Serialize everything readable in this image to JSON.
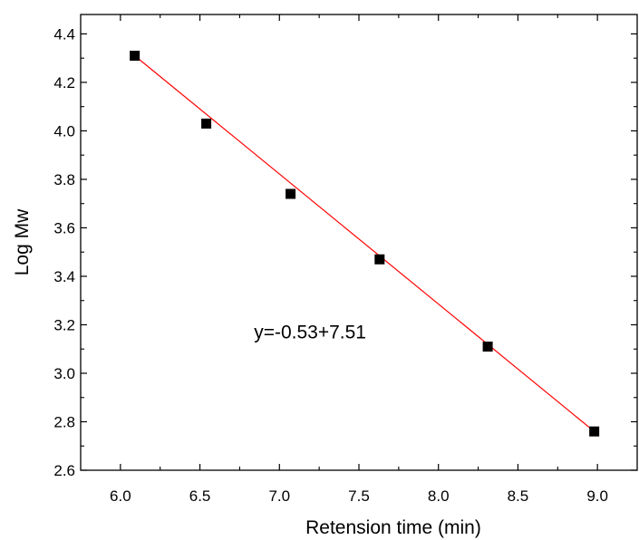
{
  "chart_data": {
    "type": "scatter",
    "title": "",
    "xlabel": "Retension time (min)",
    "ylabel": "Log Mw",
    "xlim": [
      5.75,
      9.25
    ],
    "ylim": [
      2.6,
      4.48
    ],
    "x_ticks": [
      "6.0",
      "6.5",
      "7.0",
      "7.5",
      "8.0",
      "8.5",
      "9.0"
    ],
    "y_ticks": [
      "2.6",
      "2.8",
      "3.0",
      "3.2",
      "3.4",
      "3.6",
      "3.8",
      "4.0",
      "4.2",
      "4.4"
    ],
    "grid": false,
    "legend": "none",
    "series": [
      {
        "marker": "square",
        "color": "#000000",
        "points": [
          {
            "x": 6.09,
            "y": 4.31
          },
          {
            "x": 6.54,
            "y": 4.03
          },
          {
            "x": 7.07,
            "y": 3.74
          },
          {
            "x": 7.63,
            "y": 3.47
          },
          {
            "x": 8.31,
            "y": 3.11
          },
          {
            "x": 8.98,
            "y": 2.76
          }
        ]
      }
    ],
    "fit_line": {
      "color": "#ff0000",
      "points": [
        {
          "x": 6.09,
          "y": 4.31
        },
        {
          "x": 8.98,
          "y": 2.76
        }
      ]
    },
    "annotation": {
      "text": "y=-0.53+7.51",
      "x": 6.84,
      "y": 3.17
    }
  }
}
